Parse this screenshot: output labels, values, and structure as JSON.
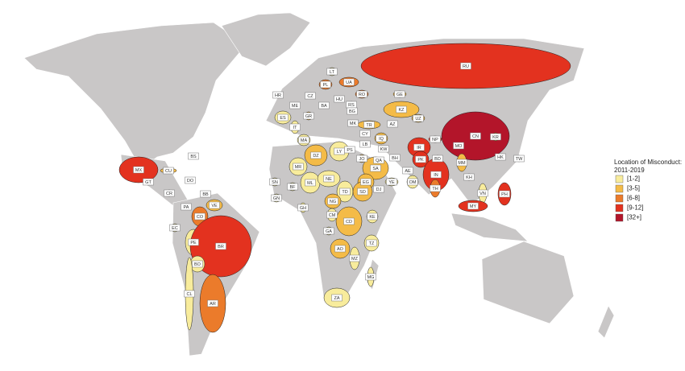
{
  "legend": {
    "title": [
      "Location of Misconduct:",
      "2011-2019"
    ],
    "items": [
      {
        "label": "[1-2]",
        "color": "#f8ec9c"
      },
      {
        "label": "[3-5]",
        "color": "#f4bb47"
      },
      {
        "label": "[6-8]",
        "color": "#eb7b2b"
      },
      {
        "label": "[9-12]",
        "color": "#e3321f"
      },
      {
        "label": "[32+]",
        "color": "#b3152a"
      }
    ]
  },
  "countries": [
    {
      "code": "RU",
      "color": "#e3321f"
    },
    {
      "code": "LT",
      "color": "#f8ec9c"
    },
    {
      "code": "PL",
      "color": "#eb7b2b"
    },
    {
      "code": "UA",
      "color": "#eb7b2b"
    },
    {
      "code": "RO",
      "color": "#eb7b2b"
    },
    {
      "code": "GE",
      "color": "#f4bb47"
    },
    {
      "code": "CZ",
      "color": "#f8ec9c"
    },
    {
      "code": "HR",
      "color": "#f8ec9c"
    },
    {
      "code": "ME",
      "color": "#f8ec9c"
    },
    {
      "code": "BA",
      "color": "#f8ec9c"
    },
    {
      "code": "HU",
      "color": "#f4bb47"
    },
    {
      "code": "RS",
      "color": "#f4bb47"
    },
    {
      "code": "BG",
      "color": "#f8ec9c"
    },
    {
      "code": "KZ",
      "color": "#f4bb47"
    },
    {
      "code": "UZ",
      "color": "#f4bb47"
    },
    {
      "code": "AZ",
      "color": "#f8ec9c"
    },
    {
      "code": "ES",
      "color": "#f8ec9c"
    },
    {
      "code": "GR",
      "color": "#f4bb47"
    },
    {
      "code": "IT",
      "color": "#f8ec9c"
    },
    {
      "code": "MK",
      "color": "#f8ec9c"
    },
    {
      "code": "TR",
      "color": "#f4bb47"
    },
    {
      "code": "CY",
      "color": "#f8ec9c"
    },
    {
      "code": "LB",
      "color": "#f8ec9c"
    },
    {
      "code": "IQ",
      "color": "#f4bb47"
    },
    {
      "code": "MA",
      "color": "#f8ec9c"
    },
    {
      "code": "DZ",
      "color": "#f4bb47"
    },
    {
      "code": "LY",
      "color": "#f8ec9c"
    },
    {
      "code": "PS",
      "color": "#f4bb47"
    },
    {
      "code": "JO",
      "color": "#f4bb47"
    },
    {
      "code": "KW",
      "color": "#f8ec9c"
    },
    {
      "code": "BH",
      "color": "#f8ec9c"
    },
    {
      "code": "QA",
      "color": "#f4bb47"
    },
    {
      "code": "AE",
      "color": "#f8ec9c"
    },
    {
      "code": "SA",
      "color": "#f4bb47"
    },
    {
      "code": "IR",
      "color": "#e3321f"
    },
    {
      "code": "NP",
      "color": "#e3321f"
    },
    {
      "code": "PK",
      "color": "#e3321f"
    },
    {
      "code": "IN",
      "color": "#e3321f"
    },
    {
      "code": "BD",
      "color": "#e3321f"
    },
    {
      "code": "CN",
      "color": "#b3152a"
    },
    {
      "code": "MO",
      "color": "#b3152a"
    },
    {
      "code": "KR",
      "color": "#f4bb47"
    },
    {
      "code": "HK",
      "color": "#b3152a"
    },
    {
      "code": "TW",
      "color": "#f8ec9c"
    },
    {
      "code": "MM",
      "color": "#f4bb47"
    },
    {
      "code": "TH",
      "color": "#eb7b2b"
    },
    {
      "code": "KH",
      "color": "#f8ec9c"
    },
    {
      "code": "VN",
      "color": "#f8ec9c"
    },
    {
      "code": "PH",
      "color": "#e3321f"
    },
    {
      "code": "MY",
      "color": "#e3321f"
    },
    {
      "code": "MX",
      "color": "#e3321f"
    },
    {
      "code": "BS",
      "color": "#f8ec9c"
    },
    {
      "code": "CU",
      "color": "#f4bb47"
    },
    {
      "code": "DO",
      "color": "#f8ec9c"
    },
    {
      "code": "GT",
      "color": "#f8ec9c"
    },
    {
      "code": "CR",
      "color": "#f8ec9c"
    },
    {
      "code": "PA",
      "color": "#f8ec9c"
    },
    {
      "code": "BB",
      "color": "#f8ec9c"
    },
    {
      "code": "VE",
      "color": "#f4bb47"
    },
    {
      "code": "CO",
      "color": "#eb7b2b"
    },
    {
      "code": "EC",
      "color": "#f8ec9c"
    },
    {
      "code": "PE",
      "color": "#f8ec9c"
    },
    {
      "code": "BR",
      "color": "#e3321f"
    },
    {
      "code": "BO",
      "color": "#f8ec9c"
    },
    {
      "code": "CL",
      "color": "#f8ec9c"
    },
    {
      "code": "AR",
      "color": "#eb7b2b"
    },
    {
      "code": "SN",
      "color": "#f8ec9c"
    },
    {
      "code": "MR",
      "color": "#f8ec9c"
    },
    {
      "code": "ML",
      "color": "#f8ec9c"
    },
    {
      "code": "NE",
      "color": "#f8ec9c"
    },
    {
      "code": "TD",
      "color": "#f8ec9c"
    },
    {
      "code": "EG",
      "color": "#f4bb47"
    },
    {
      "code": "SD",
      "color": "#f4bb47"
    },
    {
      "code": "DJ",
      "color": "#f8ec9c"
    },
    {
      "code": "YE",
      "color": "#f8ec9c"
    },
    {
      "code": "OM",
      "color": "#f8ec9c"
    },
    {
      "code": "GN",
      "color": "#f8ec9c"
    },
    {
      "code": "BF",
      "color": "#f8ec9c"
    },
    {
      "code": "GH",
      "color": "#f8ec9c"
    },
    {
      "code": "NG",
      "color": "#f4bb47"
    },
    {
      "code": "CM",
      "color": "#f8ec9c"
    },
    {
      "code": "CD",
      "color": "#f4bb47"
    },
    {
      "code": "KE",
      "color": "#f8ec9c"
    },
    {
      "code": "TZ",
      "color": "#f8ec9c"
    },
    {
      "code": "GA",
      "color": "#f8ec9c"
    },
    {
      "code": "AO",
      "color": "#f4bb47"
    },
    {
      "code": "MZ",
      "color": "#f8ec9c"
    },
    {
      "code": "MG",
      "color": "#f8ec9c"
    },
    {
      "code": "ZA",
      "color": "#f8ec9c"
    }
  ]
}
